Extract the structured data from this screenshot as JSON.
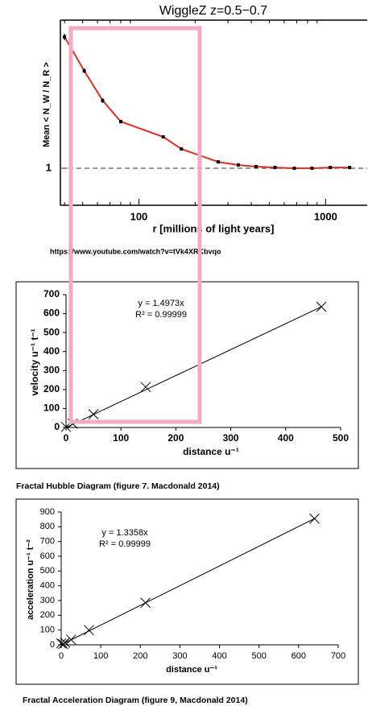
{
  "chart_data": [
    {
      "type": "line",
      "title": "WiggleZ  z=0.5−0.7",
      "x_label": "r  [millions of light years]",
      "y_label": "Mean < N_W / N_R >",
      "x": [
        40,
        51,
        64,
        80,
        135,
        169,
        266,
        341,
        424,
        536,
        680,
        846,
        1060,
        1345
      ],
      "values": [
        1.886,
        1.658,
        1.457,
        1.315,
        1.212,
        1.13,
        1.043,
        1.022,
        1.011,
        1.005,
        1.0,
        1.0,
        1.005,
        1.005
      ],
      "errors": [
        0.02,
        0.015,
        0.015,
        0.012,
        0.01,
        0.01,
        0.008,
        0.008,
        0.008,
        0.008,
        0.008,
        0.008,
        0.01,
        0.01
      ],
      "color": "#e0301e",
      "marker_color": "#000000",
      "reference_line": 1,
      "xlog": true,
      "xlim": [
        38,
        1670
      ],
      "xticks": [
        100,
        1000
      ],
      "ylim": [
        0.75,
        2.0
      ],
      "yticks": [
        1
      ],
      "source_url": "https://www.youtube.com/watch?v=tVk4XRKbvqo"
    },
    {
      "type": "scatter",
      "x_label": "distance   u⁻¹",
      "y_label": "velocity u⁻¹ t⁻¹",
      "x": [
        0,
        12,
        50,
        145,
        465
      ],
      "values": [
        3,
        20,
        70,
        213,
        636
      ],
      "color": "#000000",
      "annotations": [
        "y = 1.4973x",
        "R² = 0.99999"
      ],
      "xlim": [
        0,
        500
      ],
      "xticks": [
        0,
        100,
        200,
        300,
        400,
        500
      ],
      "ylim": [
        0,
        700
      ],
      "yticks": [
        0,
        100,
        200,
        300,
        400,
        500,
        600,
        700
      ],
      "caption": "Fractal Hubble Diagram (figure 7. Macdonald 2014)"
    },
    {
      "type": "scatter",
      "x_label": "distance u⁻¹",
      "y_label": "acceleration u⁻¹ t⁻²",
      "x": [
        0,
        5,
        10,
        25,
        70,
        213,
        640
      ],
      "values": [
        10,
        5,
        15,
        35,
        100,
        285,
        855
      ],
      "color": "#000000",
      "annotations": [
        "y = 1.3358x",
        "R² = 0.99999"
      ],
      "xlim": [
        0,
        700
      ],
      "xticks": [
        0,
        100,
        200,
        300,
        400,
        500,
        600,
        700
      ],
      "ylim": [
        0,
        900
      ],
      "yticks": [
        0,
        100,
        200,
        300,
        400,
        500,
        600,
        700,
        800,
        900
      ],
      "caption": "Fractal Acceleration Diagram (figure 9, Macdonald 2014)"
    }
  ]
}
